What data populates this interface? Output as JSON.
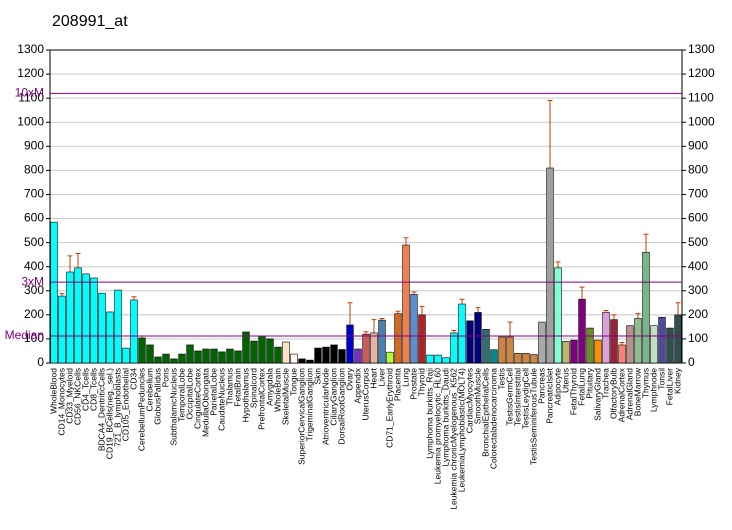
{
  "chart_data": {
    "type": "bar",
    "title": "208991_at",
    "categories": [
      "WholeBlood",
      "CD14_Monocytes",
      "CD33_Myeloid",
      "CD56_NKCells",
      "CD4_Tcells",
      "CD8_Tcells",
      "BDCA4_DentriticCells",
      "CD19_BCells(neg._sel.)",
      "721_B_lymphoblasts",
      "CD105_Endothelial",
      "CD34",
      "CerebellumPeduncles",
      "Cerebellum",
      "GlobusPallidus",
      "Pons",
      "SubthalamicNucleus",
      "TemporalLobe",
      "OccipitalLobe",
      "CingulateCortex",
      "MedullaOblongata",
      "ParietalLobe",
      "CaudateNucleus",
      "Thalamus",
      "FetalBrain",
      "Hypothalamus",
      "Spinalcord",
      "PrefrontalCortex",
      "Amygdala",
      "WholeBrain",
      "SkeletalMuscle",
      "Tongue",
      "SuperiorCervicalGanglion",
      "TrigeminalGanglion",
      "Skin",
      "AtrioventricularNode",
      "CiliaryGanglion",
      "DorsalRootGanglion",
      "Ovary",
      "Appendix",
      "UterusCorpus",
      "Heart",
      "Liver",
      "CD71_EarlyErythroid",
      "Placenta",
      "Lung",
      "Prostate",
      "Thyroid",
      "Lymphoma burkitts_Raji",
      "Leukemia promyelocytic_HL60",
      "Lymphoma burkitts_Daudi",
      "Leukemia chronicMyelogenous_K562",
      "LeukemiaLymphoblastic(MOLT4)",
      "CardiacMyocytes",
      "SmoothMuscle",
      "BronchialEpithelialCells",
      "Colorectaladenocarcinoma",
      "Testis",
      "TestisGermCell",
      "TestisInterstitial",
      "TestisLeydigCell",
      "TestisSeminiferousTubule",
      "Pancreas",
      "PancreaticIslet",
      "Adipocyte",
      "Uterus",
      "FetalThyroid",
      "FetalLung",
      "Pituitary",
      "SalivaryGland",
      "Trachea",
      "OlfactoryBulb",
      "AdrenalCortex",
      "AdrenalGland",
      "BoneMarrow",
      "Thymus",
      "Lymphnode",
      "Tonsil",
      "FetalLiver",
      "Kidney"
    ],
    "values": [
      585,
      278,
      378,
      395,
      370,
      353,
      290,
      212,
      303,
      62,
      262,
      104,
      75,
      25,
      37,
      17,
      37,
      75,
      50,
      58,
      58,
      46,
      58,
      50,
      129,
      91,
      112,
      100,
      66,
      87,
      37,
      17,
      12,
      62,
      66,
      75,
      56,
      158,
      58,
      120,
      125,
      178,
      45,
      205,
      490,
      285,
      200,
      33,
      33,
      22,
      125,
      245,
      175,
      210,
      140,
      55,
      108,
      108,
      40,
      40,
      35,
      170,
      810,
      395,
      90,
      95,
      265,
      145,
      95,
      210,
      180,
      75,
      155,
      185,
      460,
      155,
      190,
      145,
      200
    ],
    "errors": [
      null,
      10,
      67,
      60,
      null,
      null,
      null,
      null,
      null,
      null,
      13,
      8,
      null,
      null,
      null,
      null,
      null,
      null,
      null,
      null,
      null,
      null,
      null,
      null,
      null,
      null,
      null,
      null,
      null,
      null,
      null,
      null,
      null,
      null,
      null,
      null,
      null,
      92,
      null,
      10,
      55,
      7,
      null,
      10,
      30,
      10,
      35,
      null,
      null,
      null,
      10,
      20,
      null,
      20,
      null,
      null,
      null,
      62,
      null,
      null,
      null,
      null,
      280,
      25,
      null,
      null,
      50,
      null,
      null,
      8,
      20,
      10,
      null,
      20,
      75,
      null,
      null,
      null,
      50
    ],
    "colors": [
      "#00ffff",
      "#00ffff",
      "#00ffff",
      "#00ffff",
      "#00ffff",
      "#00ffff",
      "#00ffff",
      "#00ffff",
      "#00ffff",
      "#00ffff",
      "#00ffff",
      "#006400",
      "#006400",
      "#006400",
      "#006400",
      "#006400",
      "#006400",
      "#006400",
      "#006400",
      "#006400",
      "#006400",
      "#006400",
      "#006400",
      "#006400",
      "#006400",
      "#006400",
      "#006400",
      "#006400",
      "#006400",
      "#ffe4c4",
      "#fff5ee",
      "#000000",
      "#000000",
      "#000000",
      "#000000",
      "#000000",
      "#000000",
      "#0000cd",
      "#7b2fbe",
      "#cd5c5c",
      "#e8b4a0",
      "#4682b4",
      "#adff2f",
      "#d2691e",
      "#f08050",
      "#5b8fd6",
      "#b22222",
      "#00ffff",
      "#00ffff",
      "#00ffff",
      "#00ffff",
      "#00ffff",
      "#000080",
      "#000080",
      "#2f6f6f",
      "#008b8b",
      "#cd853f",
      "#cd853f",
      "#cd853f",
      "#cd853f",
      "#cd853f",
      "#a9a9a9",
      "#a0a0a0",
      "#7fffd4",
      "#bdb76b",
      "#800080",
      "#800080",
      "#6b8e23",
      "#ff8c00",
      "#dda0dd",
      "#a0203a",
      "#fa8072",
      "#bc8f8f",
      "#8fbc8f",
      "#79b68a",
      "#c0e0c0",
      "#4b4b9a",
      "#2f4f4f",
      "#2f4f4f"
    ],
    "error_color": "#c04000",
    "ylim": [
      0,
      1300
    ],
    "yticks": [
      0,
      100,
      200,
      300,
      400,
      500,
      600,
      700,
      800,
      900,
      1000,
      1100,
      1200,
      1300
    ],
    "grid": true,
    "reference_lines": [
      {
        "label": "10xM",
        "value": 1120
      },
      {
        "label": "3xM",
        "value": 336
      },
      {
        "label": "Median",
        "value": 112
      }
    ],
    "reference_color": "#800080"
  }
}
